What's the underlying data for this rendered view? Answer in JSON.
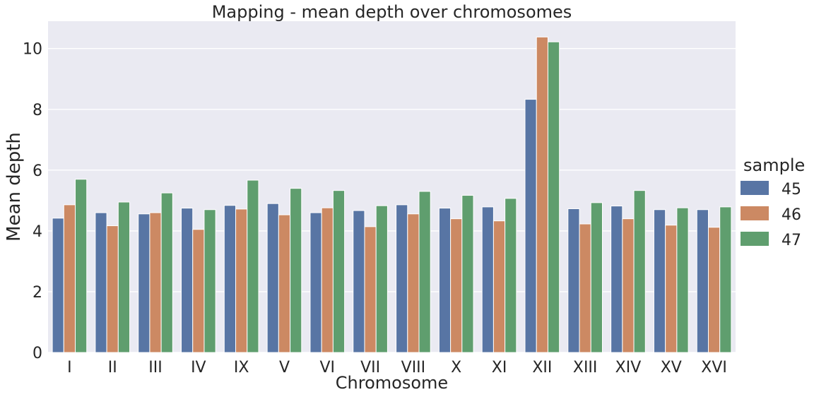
{
  "chart_data": {
    "type": "bar",
    "title": "Mapping - mean depth over chromosomes",
    "xlabel": "Chromosome",
    "ylabel": "Mean depth",
    "ylim": [
      0,
      10.9
    ],
    "yticks": [
      0,
      2,
      4,
      6,
      8,
      10
    ],
    "grid": true,
    "legend_title": "sample",
    "legend_position": "right",
    "categories": [
      "I",
      "II",
      "III",
      "IV",
      "IX",
      "V",
      "VI",
      "VII",
      "VIII",
      "X",
      "XI",
      "XII",
      "XIII",
      "XIV",
      "XV",
      "XVI"
    ],
    "series": [
      {
        "name": "45",
        "color": "#5875a4",
        "values": [
          4.42,
          4.6,
          4.56,
          4.75,
          4.84,
          4.9,
          4.6,
          4.67,
          4.86,
          4.75,
          4.79,
          8.33,
          4.73,
          4.82,
          4.7,
          4.7
        ]
      },
      {
        "name": "46",
        "color": "#cc8963",
        "values": [
          4.86,
          4.17,
          4.6,
          4.05,
          4.72,
          4.53,
          4.76,
          4.14,
          4.56,
          4.4,
          4.33,
          10.38,
          4.23,
          4.4,
          4.19,
          4.12
        ]
      },
      {
        "name": "47",
        "color": "#5f9e6e",
        "values": [
          5.7,
          4.95,
          5.25,
          4.7,
          5.67,
          5.4,
          5.33,
          4.83,
          5.3,
          5.17,
          5.07,
          10.22,
          4.93,
          5.33,
          4.76,
          4.79
        ]
      }
    ]
  }
}
